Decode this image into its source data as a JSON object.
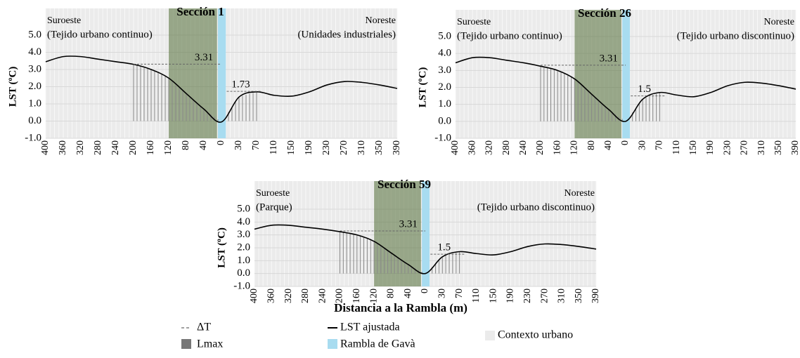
{
  "chart_data": [
    {
      "type": "line",
      "title": "Sección 1",
      "left_label": "Suroeste",
      "right_label": "Noreste",
      "left_context": "(Tejido urbano continuo)",
      "right_context": "(Unidades industriales)",
      "ylabel": "LST (ºC)",
      "categories": [
        "400",
        "360",
        "320",
        "280",
        "240",
        "200",
        "160",
        "120",
        "80",
        "40",
        "0",
        "30",
        "70",
        "110",
        "150",
        "190",
        "230",
        "270",
        "310",
        "350",
        "390"
      ],
      "series": [
        {
          "name": "LST ajustada",
          "color": "#000000",
          "values": [
            3.45,
            3.75,
            3.75,
            3.6,
            3.45,
            3.3,
            3.0,
            2.5,
            1.6,
            0.7,
            -0.05,
            1.4,
            1.7,
            1.5,
            1.45,
            1.7,
            2.1,
            2.3,
            2.25,
            2.1,
            1.9
          ]
        }
      ],
      "delta_t": [
        3.31,
        1.73
      ],
      "ylim": [
        -1,
        5
      ],
      "yticks": [
        {
          "value": 5,
          "label": "5.0"
        },
        {
          "value": 4,
          "label": "4.0"
        },
        {
          "value": 3,
          "label": "3.0"
        },
        {
          "value": 2,
          "label": "2.0"
        },
        {
          "value": 1,
          "label": "1.0"
        },
        {
          "value": 0,
          "label": "0.0"
        },
        {
          "value": -1,
          "label": "-1.0"
        }
      ]
    },
    {
      "type": "line",
      "title": "Sección 26",
      "left_label": "Suroeste",
      "right_label": "Noreste",
      "left_context": "(Tejido urbano continuo)",
      "right_context": "(Tejido urbano discontinuo)",
      "ylabel": "LST (ºC)",
      "categories": [
        "400",
        "360",
        "320",
        "280",
        "240",
        "200",
        "160",
        "120",
        "80",
        "40",
        "0",
        "30",
        "70",
        "110",
        "150",
        "190",
        "230",
        "270",
        "310",
        "350",
        "390"
      ],
      "series": [
        {
          "name": "LST ajustada",
          "color": "#000000",
          "values": [
            3.45,
            3.75,
            3.75,
            3.6,
            3.45,
            3.25,
            3.0,
            2.5,
            1.6,
            0.7,
            0.0,
            1.3,
            1.7,
            1.55,
            1.45,
            1.7,
            2.1,
            2.3,
            2.25,
            2.1,
            1.9
          ]
        }
      ],
      "delta_t": [
        3.31,
        1.5
      ],
      "ylim": [
        -1,
        5
      ],
      "yticks": [
        {
          "value": 5,
          "label": "5.0"
        },
        {
          "value": 4,
          "label": "4.0"
        },
        {
          "value": 3,
          "label": "3.0"
        },
        {
          "value": 2,
          "label": "2.0"
        },
        {
          "value": 1,
          "label": "1.0"
        },
        {
          "value": 0,
          "label": "0.0"
        },
        {
          "value": -1,
          "label": "-1.0"
        }
      ]
    },
    {
      "type": "line",
      "title": "Sección 59",
      "left_label": "Suroeste",
      "right_label": "Noreste",
      "left_context": "(Parque)",
      "right_context": "(Tejido urbano discontinuo)",
      "ylabel": "LST (ºC)",
      "categories": [
        "400",
        "360",
        "320",
        "280",
        "240",
        "200",
        "160",
        "120",
        "80",
        "40",
        "0",
        "30",
        "70",
        "110",
        "150",
        "190",
        "230",
        "270",
        "310",
        "350",
        "390"
      ],
      "series": [
        {
          "name": "LST ajustada",
          "color": "#000000",
          "values": [
            3.45,
            3.75,
            3.75,
            3.6,
            3.45,
            3.25,
            3.0,
            2.5,
            1.6,
            0.7,
            0.0,
            1.3,
            1.7,
            1.55,
            1.45,
            1.7,
            2.1,
            2.3,
            2.25,
            2.1,
            1.9
          ]
        }
      ],
      "delta_t": [
        3.31,
        1.5
      ],
      "ylim": [
        -1,
        5
      ],
      "yticks": [
        {
          "value": 5,
          "label": "5.0"
        },
        {
          "value": 4,
          "label": "4.0"
        },
        {
          "value": 3,
          "label": "3.0"
        },
        {
          "value": 2,
          "label": "2.0"
        },
        {
          "value": 1,
          "label": "1.0"
        },
        {
          "value": 0,
          "label": "0.0"
        },
        {
          "value": -1,
          "label": "-1.0"
        }
      ]
    }
  ],
  "xlabel": "Distancia a la Rambla (m)",
  "legend": {
    "delta_t": "ΔT",
    "lmax": "Lmax",
    "line": "LST ajustada",
    "rambla": "Rambla de Gavà",
    "context": "Contexto urbano"
  }
}
